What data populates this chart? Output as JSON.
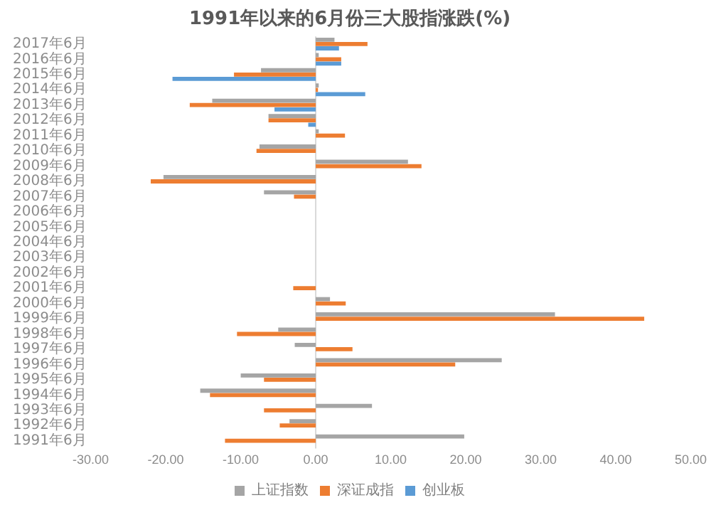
{
  "chart_data": {
    "type": "bar",
    "orientation": "horizontal",
    "title": "1991年以来的6月份三大股指涨跌(%)",
    "categories": [
      "2017年6月",
      "2016年6月",
      "2015年6月",
      "2014年6月",
      "2013年6月",
      "2012年6月",
      "2011年6月",
      "2010年6月",
      "2009年6月",
      "2008年6月",
      "2007年6月",
      "2006年6月",
      "2005年6月",
      "2004年6月",
      "2003年6月",
      "2002年6月",
      "2001年6月",
      "2000年6月",
      "1999年6月",
      "1998年6月",
      "1997年6月",
      "1996年6月",
      "1995年6月",
      "1994年6月",
      "1993年6月",
      "1992年6月",
      "1991年6月"
    ],
    "series": [
      {
        "name": "上证指数",
        "color": "#a5a5a5",
        "values": [
          2.5,
          0.4,
          -7.3,
          0.4,
          -13.8,
          -6.3,
          0.4,
          -7.5,
          12.3,
          -20.3,
          -6.9,
          null,
          null,
          null,
          null,
          null,
          null,
          1.9,
          31.9,
          -5.0,
          -2.8,
          24.8,
          -10.0,
          -15.4,
          7.5,
          -3.5,
          19.8
        ]
      },
      {
        "name": "深证成指",
        "color": "#ed7d31",
        "values": [
          6.9,
          3.4,
          -10.9,
          0.3,
          -16.8,
          -6.3,
          3.9,
          -7.9,
          14.1,
          -22.0,
          -2.9,
          null,
          null,
          null,
          null,
          null,
          -3.0,
          4.0,
          43.8,
          -10.5,
          4.9,
          18.6,
          -6.9,
          -14.1,
          -6.9,
          -4.8,
          -12.1
        ]
      },
      {
        "name": "创业板",
        "color": "#5b9bd5",
        "values": [
          3.1,
          3.4,
          -19.1,
          6.6,
          -5.5,
          -1.0,
          null,
          null,
          null,
          null,
          null,
          null,
          null,
          null,
          null,
          null,
          null,
          null,
          null,
          null,
          null,
          null,
          null,
          null,
          null,
          null,
          null
        ]
      }
    ],
    "xlim": [
      -30,
      50
    ],
    "xticks": [
      {
        "value": -30,
        "label": "-30.00"
      },
      {
        "value": -20,
        "label": "-20.00"
      },
      {
        "value": -10,
        "label": "-10.00"
      },
      {
        "value": 0,
        "label": "0.00"
      },
      {
        "value": 10,
        "label": "10.00"
      },
      {
        "value": 20,
        "label": "20.00"
      },
      {
        "value": 30,
        "label": "30.00"
      },
      {
        "value": 40,
        "label": "40.00"
      },
      {
        "value": 50,
        "label": "50.00"
      }
    ],
    "legend": "bottom"
  }
}
